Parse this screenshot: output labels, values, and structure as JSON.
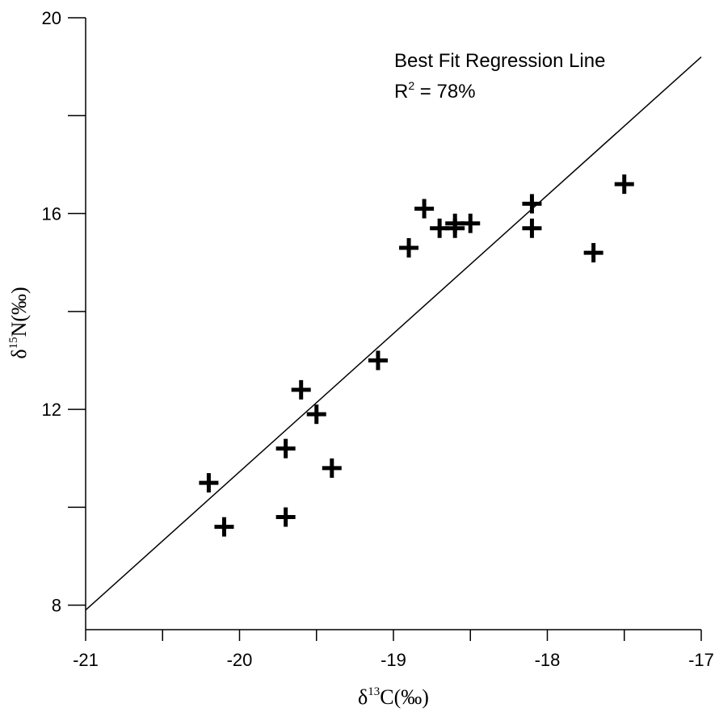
{
  "chart_data": {
    "type": "scatter",
    "title": "",
    "xlabel": {
      "base": "δ",
      "sup": "13",
      "rest": "C(‰)"
    },
    "ylabel": {
      "base": "δ",
      "sup": "15",
      "rest": "N(‰)"
    },
    "xlim": [
      -21,
      -17
    ],
    "ylim": [
      7.5,
      20
    ],
    "x_ticks": [
      -21,
      -20.5,
      -20,
      -19.5,
      -19,
      -18.5,
      -18,
      -17.5,
      -17
    ],
    "x_tick_labels": [
      "-21",
      "",
      "-20",
      "",
      "-19",
      "",
      "-18",
      "",
      "-17"
    ],
    "y_ticks": [
      8,
      10,
      12,
      14,
      16,
      18,
      20
    ],
    "y_tick_labels": [
      "8",
      "",
      "12",
      "",
      "16",
      "",
      "20"
    ],
    "grid": false,
    "points": [
      {
        "x": -20.2,
        "y": 10.5
      },
      {
        "x": -20.1,
        "y": 9.6
      },
      {
        "x": -19.7,
        "y": 9.8
      },
      {
        "x": -19.7,
        "y": 11.2
      },
      {
        "x": -19.6,
        "y": 12.4
      },
      {
        "x": -19.5,
        "y": 11.9
      },
      {
        "x": -19.4,
        "y": 10.8
      },
      {
        "x": -19.1,
        "y": 13.0
      },
      {
        "x": -18.9,
        "y": 15.3
      },
      {
        "x": -18.8,
        "y": 16.1
      },
      {
        "x": -18.7,
        "y": 15.7
      },
      {
        "x": -18.6,
        "y": 15.7
      },
      {
        "x": -18.6,
        "y": 15.8
      },
      {
        "x": -18.5,
        "y": 15.8
      },
      {
        "x": -18.1,
        "y": 16.2
      },
      {
        "x": -18.1,
        "y": 15.7
      },
      {
        "x": -17.7,
        "y": 15.2
      },
      {
        "x": -17.5,
        "y": 16.6
      }
    ],
    "regression_line": {
      "x": [
        -21,
        -17
      ],
      "y": [
        7.9,
        19.2
      ]
    },
    "annotation": {
      "line1": "Best Fit Regression Line",
      "line2_base": "R",
      "line2_sup": "2",
      "line2_rest": " = 78%"
    }
  }
}
